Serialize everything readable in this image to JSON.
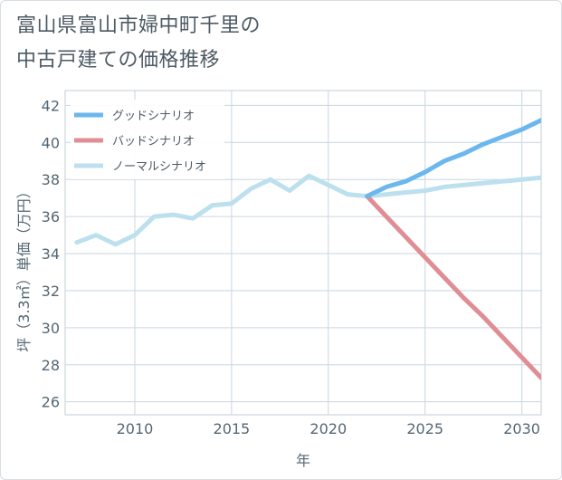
{
  "chart_data": {
    "type": "line",
    "title": [
      "富山県富山市婦中町千里の",
      "中古戸建ての価格推移"
    ],
    "xlabel": "年",
    "ylabel": "坪（3.3㎡）単価（万円）",
    "xlim": [
      2006.4,
      2031
    ],
    "ylim": [
      25.3,
      42.8
    ],
    "xticks": [
      2010,
      2015,
      2020,
      2025,
      2030
    ],
    "yticks": [
      26,
      28,
      30,
      32,
      34,
      36,
      38,
      40,
      42
    ],
    "grid": true,
    "legend_position": "top-left",
    "series": [
      {
        "name": "グッドシナリオ",
        "color": "#6bb7ee",
        "x": [
          2022,
          2023,
          2024,
          2025,
          2026,
          2027,
          2028,
          2029,
          2030,
          2031
        ],
        "y": [
          37.1,
          37.6,
          37.9,
          38.4,
          39.0,
          39.4,
          39.9,
          40.3,
          40.7,
          41.2
        ]
      },
      {
        "name": "バッドシナリオ",
        "color": "#df8e94",
        "x": [
          2022,
          2023,
          2024,
          2025,
          2026,
          2027,
          2028,
          2029,
          2030,
          2031
        ],
        "y": [
          37.1,
          36.0,
          34.9,
          33.8,
          32.7,
          31.6,
          30.6,
          29.5,
          28.4,
          27.3
        ]
      },
      {
        "name": "ノーマルシナリオ",
        "color": "#bde0ee",
        "x": [
          2007,
          2008,
          2009,
          2010,
          2011,
          2012,
          2013,
          2014,
          2015,
          2016,
          2017,
          2018,
          2019,
          2020,
          2021,
          2022,
          2023,
          2024,
          2025,
          2026,
          2027,
          2028,
          2029,
          2030,
          2031
        ],
        "y": [
          34.6,
          35.0,
          34.5,
          35.0,
          36.0,
          36.1,
          35.9,
          36.6,
          36.7,
          37.5,
          38.0,
          37.4,
          38.2,
          37.7,
          37.2,
          37.1,
          37.2,
          37.3,
          37.4,
          37.6,
          37.7,
          37.8,
          37.9,
          38.0,
          38.1
        ]
      }
    ]
  }
}
